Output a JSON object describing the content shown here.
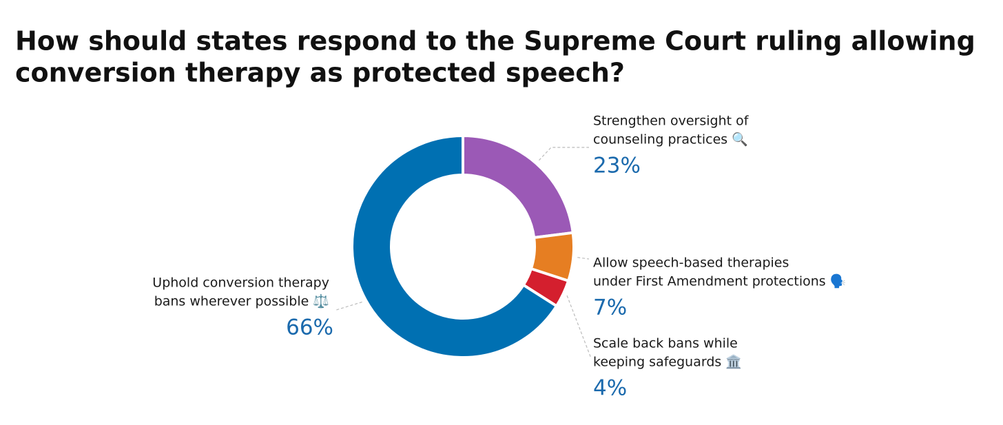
{
  "chart_data": {
    "type": "donut",
    "title": [
      "How should states respond to the Supreme Court ruling allowing",
      "conversion therapy as protected speech?"
    ],
    "categories": [
      [
        "Strengthen oversight of",
        "counseling practices 🔍"
      ],
      [
        "Allow speech-based therapies",
        "under First Amendment protections 🗣️"
      ],
      [
        "Scale back bans while",
        "keeping safeguards 🏛️"
      ],
      [
        "Uphold conversion therapy",
        "bans wherever possible ⚖️"
      ]
    ],
    "values": [
      23,
      7,
      4,
      66
    ],
    "value_labels": [
      "23%",
      "7%",
      "4%",
      "66%"
    ],
    "colors": [
      "#9b59b6",
      "#e67e22",
      "#d41f2e",
      "#0070b2"
    ]
  }
}
